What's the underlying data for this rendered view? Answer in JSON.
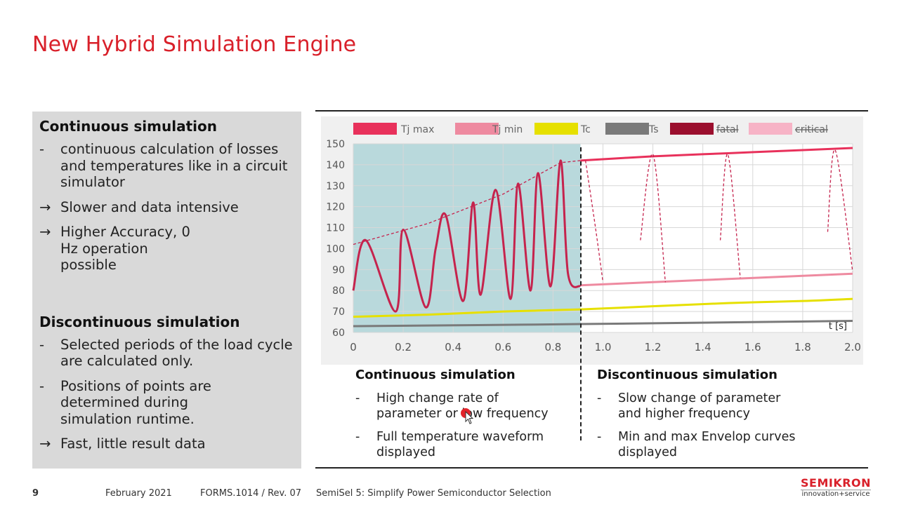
{
  "slide": {
    "title": "New Hybrid Simulation Engine"
  },
  "left_panel": {
    "continuous": {
      "heading": "Continuous simulation",
      "bullets": [
        {
          "mark": "-",
          "text": "continuous calculation of losses and temperatures like in a circuit simulator"
        },
        {
          "mark": "→",
          "text": "Slower and data intensive"
        },
        {
          "mark": "→",
          "text": "Higher Accuracy, 0 Hz operation possible"
        }
      ]
    },
    "discontinuous": {
      "heading": "Discontinuous simulation",
      "bullets": [
        {
          "mark": "-",
          "text": "Selected periods of the load cycle are calculated only."
        },
        {
          "mark": "-",
          "text": "Positions of points are determined during simulation runtime."
        },
        {
          "mark": "→",
          "text": "Fast, little result data"
        }
      ]
    }
  },
  "chart_data": {
    "type": "line",
    "title": "",
    "xlabel": "t [s]",
    "ylabel": "",
    "xlim": [
      0,
      2.0
    ],
    "ylim": [
      60,
      150
    ],
    "x_ticks": [
      "0",
      "0.2",
      "0.4",
      "0.6",
      "0.8",
      "1.0",
      "1.2",
      "1.4",
      "1.6",
      "1.8",
      "2.0"
    ],
    "y_ticks": [
      "60",
      "70",
      "80",
      "90",
      "100",
      "110",
      "120",
      "130",
      "140",
      "150"
    ],
    "grid": true,
    "legend_position": "top",
    "continuous_region_end_x": 0.91,
    "legend": [
      {
        "label": "Tj max",
        "color": "#e8315b",
        "struck": false
      },
      {
        "label": "Tj min",
        "color": "#ee8aa0",
        "struck": false
      },
      {
        "label": "Tc",
        "color": "#e6e000",
        "struck": false
      },
      {
        "label": "Ts",
        "color": "#7a7a7a",
        "struck": false
      },
      {
        "label": "fatal",
        "color": "#9b0f2e",
        "struck": true
      },
      {
        "label": "critical",
        "color": "#f7b3c6",
        "struck": true
      }
    ],
    "series": [
      {
        "name": "Tj max",
        "color": "#e8315b",
        "x": [
          0.91,
          1.2,
          1.5,
          1.8,
          2.0
        ],
        "y": [
          142,
          144,
          145.5,
          147,
          148
        ]
      },
      {
        "name": "Tj min",
        "color": "#ee8aa0",
        "x": [
          0.91,
          1.2,
          1.5,
          1.8,
          2.0
        ],
        "y": [
          82.5,
          84,
          85.5,
          87,
          88
        ]
      },
      {
        "name": "Tc",
        "color": "#e6e000",
        "x": [
          0,
          0.3,
          0.6,
          0.91,
          1.2,
          1.5,
          1.8,
          2.0
        ],
        "y": [
          67.5,
          68.5,
          70,
          71,
          72.5,
          74,
          75,
          76
        ]
      },
      {
        "name": "Ts",
        "color": "#7a7a7a",
        "x": [
          0,
          0.5,
          0.91,
          1.5,
          2.0
        ],
        "y": [
          63,
          63.5,
          64,
          64.8,
          65.5
        ]
      },
      {
        "name": "Tj waveform",
        "color": "#c5234d",
        "x": [
          0,
          0.05,
          0.17,
          0.2,
          0.29,
          0.33,
          0.37,
          0.44,
          0.48,
          0.51,
          0.57,
          0.63,
          0.66,
          0.71,
          0.74,
          0.79,
          0.83,
          0.86,
          0.91
        ],
        "y": [
          80,
          104,
          70,
          109,
          72,
          100,
          116,
          75,
          122,
          78,
          128,
          76,
          131,
          80,
          136,
          82,
          142,
          88,
          82
        ]
      },
      {
        "name": "Upper envelope",
        "color": "#c5234d",
        "x": [
          0,
          0.3,
          0.6,
          0.83,
          0.91
        ],
        "y": [
          102,
          112,
          126,
          141,
          142
        ]
      }
    ],
    "discontinuous_peaks": [
      {
        "x": [
          0.93,
          0.97,
          1.0
        ],
        "y": [
          142,
          110,
          84
        ]
      },
      {
        "x": [
          1.15,
          1.2,
          1.25
        ],
        "y": [
          104,
          145,
          84
        ]
      },
      {
        "x": [
          1.47,
          1.5,
          1.55
        ],
        "y": [
          104,
          145,
          86
        ]
      },
      {
        "x": [
          1.9,
          1.93,
          2.0
        ],
        "y": [
          108,
          147,
          89
        ]
      }
    ]
  },
  "bottom": {
    "continuous": {
      "heading": "Continuous simulation",
      "bullets": [
        {
          "mark": "-",
          "text": "High change rate of parameter or low frequency"
        },
        {
          "mark": "-",
          "text": "Full temperature waveform displayed"
        }
      ]
    },
    "discontinuous": {
      "heading": "Discontinuous simulation",
      "bullets": [
        {
          "mark": "-",
          "text": "Slow change of parameter and higher frequency"
        },
        {
          "mark": "-",
          "text": "Min and max Envelop curves displayed"
        }
      ]
    }
  },
  "footer": {
    "page": "9",
    "date": "February 2021",
    "form": "FORMS.1014 / Rev. 07",
    "product": "SemiSel 5: Simplify Power Semiconductor Selection"
  },
  "logo": {
    "name": "SEMIKRON",
    "tagline": "innovation+service",
    "color": "#d9202a"
  }
}
